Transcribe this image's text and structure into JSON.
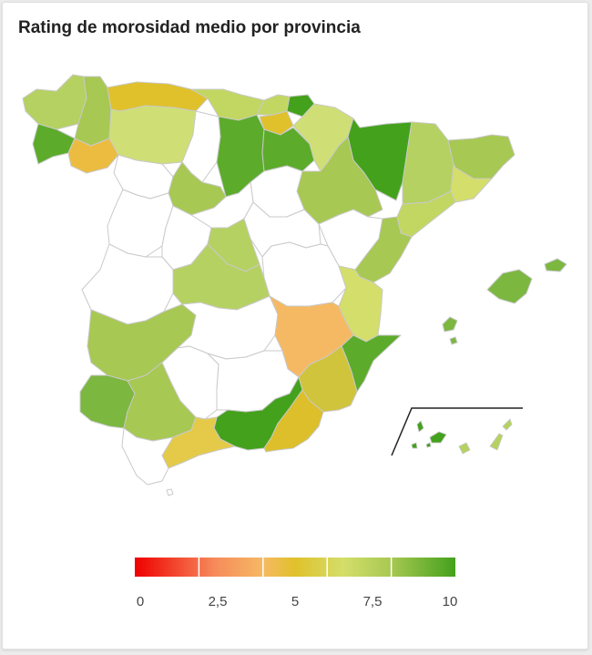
{
  "title": "Rating de morosidad medio por provincia",
  "legend": {
    "min": 0,
    "max": 10,
    "ticks": [
      "0",
      "2,5",
      "5",
      "7,5",
      "10"
    ],
    "stops": [
      {
        "value": 0,
        "color": "#ef0000"
      },
      {
        "value": 2.5,
        "color": "#f68b5b"
      },
      {
        "value": 4,
        "color": "#f6b963"
      },
      {
        "value": 5,
        "color": "#e0c12b"
      },
      {
        "value": 6.5,
        "color": "#d4de6a"
      },
      {
        "value": 8,
        "color": "#a7c852"
      },
      {
        "value": 10,
        "color": "#44a11c"
      }
    ],
    "bands": 5
  },
  "colors": {
    "no_data": "#ffffff",
    "border": "#c9c9c9"
  }
}
